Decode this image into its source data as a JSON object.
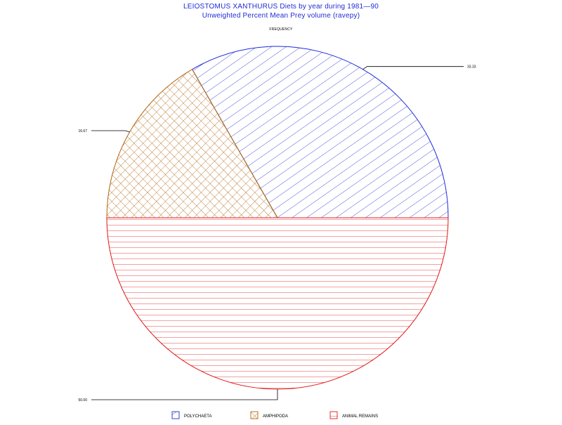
{
  "chart_data": {
    "type": "pie",
    "title": "LEIOSTOMUS XANTHURUS Diets by year during 1981—90",
    "subtitle": "Unweighted Percent Mean Prey volume (ravepy)",
    "top_label": "FREQUENCY",
    "slices": [
      {
        "label": "POLYCHAETA",
        "value": 33.33,
        "value_label": "33.33",
        "color": "#1e2bd8",
        "pattern": "diagonal"
      },
      {
        "label": "AMPHIPODA",
        "value": 16.67,
        "value_label": "16.67",
        "color": "#b0650f",
        "pattern": "crosshatch"
      },
      {
        "label": "ANIMAL REMAINS",
        "value": 50.0,
        "value_label": "50.00",
        "color": "#e01818",
        "pattern": "horizontal"
      }
    ],
    "legend_position": "bottom"
  }
}
